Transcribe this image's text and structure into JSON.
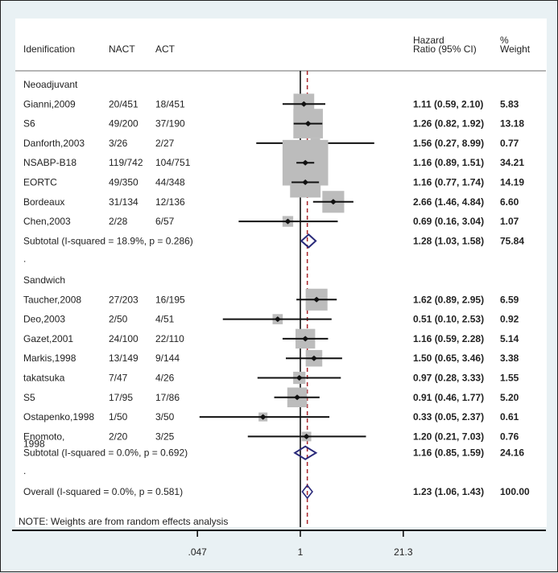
{
  "chart_data": {
    "type": "forest",
    "scale": "log",
    "headers": {
      "id": "Idenification",
      "nact": "NACT",
      "act": "ACT",
      "hr_line1": "Hazard",
      "hr_line2": "Ratio (95% CI)",
      "w_line1": "%",
      "w_line2": "Weight"
    },
    "groups": [
      {
        "name": "Neoadjuvant",
        "studies": [
          {
            "id": "Gianni,2009",
            "nact": "20/451",
            "act": "18/451",
            "hr": 1.11,
            "lo": 0.59,
            "hi": 2.1,
            "label": "1.11 (0.59, 2.10)",
            "weight": 5.83,
            "weight_label": "5.83"
          },
          {
            "id": "S6",
            "nact": "49/200",
            "act": "37/190",
            "hr": 1.26,
            "lo": 0.82,
            "hi": 1.92,
            "label": "1.26 (0.82, 1.92)",
            "weight": 13.18,
            "weight_label": "13.18"
          },
          {
            "id": "Danforth,2003",
            "nact": "3/26",
            "act": "2/27",
            "hr": 1.56,
            "lo": 0.27,
            "hi": 8.99,
            "label": "1.56 (0.27, 8.99)",
            "weight": 0.77,
            "weight_label": "0.77"
          },
          {
            "id": "NSABP-B18",
            "nact": "119/742",
            "act": "104/751",
            "hr": 1.16,
            "lo": 0.89,
            "hi": 1.51,
            "label": "1.16 (0.89, 1.51)",
            "weight": 34.21,
            "weight_label": "34.21"
          },
          {
            "id": "EORTC",
            "nact": "49/350",
            "act": "44/348",
            "hr": 1.16,
            "lo": 0.77,
            "hi": 1.74,
            "label": "1.16 (0.77, 1.74)",
            "weight": 14.19,
            "weight_label": "14.19"
          },
          {
            "id": "Bordeaux",
            "nact": "31/134",
            "act": "12/136",
            "hr": 2.66,
            "lo": 1.46,
            "hi": 4.84,
            "label": "2.66 (1.46, 4.84)",
            "weight": 6.6,
            "weight_label": "6.60"
          },
          {
            "id": "Chen,2003",
            "nact": "2/28",
            "act": "6/57",
            "hr": 0.69,
            "lo": 0.16,
            "hi": 3.04,
            "label": "0.69 (0.16, 3.04)",
            "weight": 1.07,
            "weight_label": "1.07"
          }
        ],
        "subtotal": {
          "text": "Subtotal  (I-squared = 18.9%, p = 0.286)",
          "hr": 1.28,
          "lo": 1.03,
          "hi": 1.58,
          "label": "1.28 (1.03, 1.58)",
          "weight_label": "75.84"
        }
      },
      {
        "name": "Sandwich",
        "studies": [
          {
            "id": "Taucher,2008",
            "nact": "27/203",
            "act": "16/195",
            "hr": 1.62,
            "lo": 0.89,
            "hi": 2.95,
            "label": "1.62 (0.89, 2.95)",
            "weight": 6.59,
            "weight_label": "6.59"
          },
          {
            "id": "Deo,2003",
            "nact": "2/50",
            "act": "4/51",
            "hr": 0.51,
            "lo": 0.1,
            "hi": 2.53,
            "label": "0.51 (0.10, 2.53)",
            "weight": 0.92,
            "weight_label": "0.92"
          },
          {
            "id": "Gazet,2001",
            "nact": "24/100",
            "act": "22/110",
            "hr": 1.16,
            "lo": 0.59,
            "hi": 2.28,
            "label": "1.16 (0.59, 2.28)",
            "weight": 5.14,
            "weight_label": "5.14"
          },
          {
            "id": "Markis,1998",
            "nact": "13/149",
            "act": "9/144",
            "hr": 1.5,
            "lo": 0.65,
            "hi": 3.46,
            "label": "1.50 (0.65, 3.46)",
            "weight": 3.38,
            "weight_label": "3.38"
          },
          {
            "id": "takatsuka",
            "nact": "7/47",
            "act": "4/26",
            "hr": 0.97,
            "lo": 0.28,
            "hi": 3.33,
            "label": "0.97 (0.28, 3.33)",
            "weight": 1.55,
            "weight_label": "1.55"
          },
          {
            "id": "S5",
            "nact": "17/95",
            "act": "17/86",
            "hr": 0.91,
            "lo": 0.46,
            "hi": 1.77,
            "label": "0.91 (0.46, 1.77)",
            "weight": 5.2,
            "weight_label": "5.20"
          },
          {
            "id": "Ostapenko,1998",
            "nact": "1/50",
            "act": "3/50",
            "hr": 0.33,
            "lo": 0.05,
            "hi": 2.37,
            "label": "0.33 (0.05, 2.37)",
            "weight": 0.61,
            "weight_label": "0.61"
          },
          {
            "id": "Enomoto,",
            "id2": "1998",
            "nact": "2/20",
            "act": "3/25",
            "hr": 1.2,
            "lo": 0.21,
            "hi": 7.03,
            "label": "1.20 (0.21, 7.03)",
            "weight": 0.76,
            "weight_label": "0.76"
          }
        ],
        "subtotal": {
          "text": "Subtotal  (I-squared = 0.0%, p = 0.692)",
          "hr": 1.16,
          "lo": 0.85,
          "hi": 1.59,
          "label": "1.16 (0.85, 1.59)",
          "weight_label": "24.16"
        }
      }
    ],
    "separator_dot": ".",
    "overall": {
      "text": "Overall  (I-squared = 0.0%, p = 0.581)",
      "hr": 1.23,
      "lo": 1.06,
      "hi": 1.43,
      "label": "1.23 (1.06, 1.43)",
      "weight_label": "100.00"
    },
    "note": "NOTE: Weights are from random effects analysis",
    "x_ticks": [
      {
        "value": 0.047,
        "label": ".047"
      },
      {
        "value": 1,
        "label": "1"
      },
      {
        "value": 21.3,
        "label": "21.3"
      }
    ],
    "null_line": 1,
    "pooled_line": 1.23,
    "colors": {
      "box": "#bcbcbc",
      "ci": "#111111",
      "diamond": "#2a2a7a",
      "pooled_line": "#a8242a",
      "null_line": "#111111"
    }
  }
}
